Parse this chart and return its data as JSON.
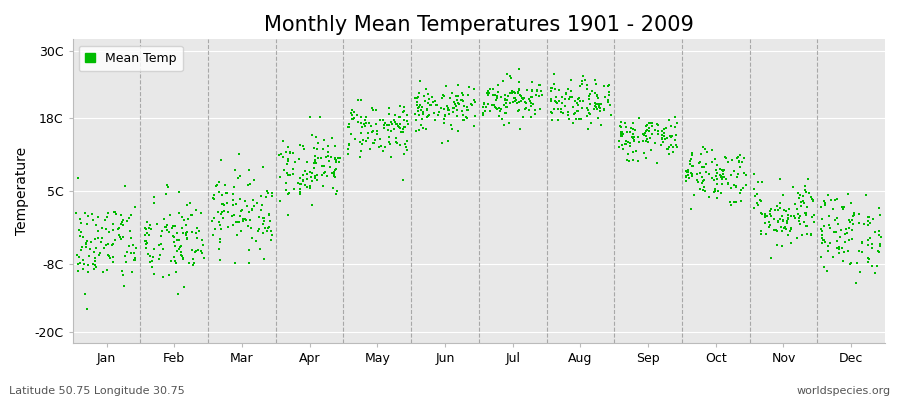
{
  "title": "Monthly Mean Temperatures 1901 - 2009",
  "ylabel": "Temperature",
  "yticks": [
    -20,
    -8,
    5,
    18,
    30
  ],
  "ytick_labels": [
    "-20C",
    "-8C",
    "5C",
    "18C",
    "30C"
  ],
  "ylim": [
    -22,
    32
  ],
  "months": [
    "Jan",
    "Feb",
    "Mar",
    "Apr",
    "May",
    "Jun",
    "Jul",
    "Aug",
    "Sep",
    "Oct",
    "Nov",
    "Dec"
  ],
  "mean_temps": [
    -4.5,
    -4.0,
    1.5,
    9.5,
    16.0,
    19.5,
    21.5,
    20.5,
    14.5,
    8.0,
    1.0,
    -2.5
  ],
  "std_temps": [
    4.0,
    4.2,
    3.5,
    3.0,
    2.5,
    2.0,
    2.0,
    2.0,
    2.0,
    2.5,
    3.0,
    3.5
  ],
  "trend_per_year": [
    0.02,
    0.02,
    0.02,
    0.02,
    0.02,
    0.01,
    0.01,
    0.01,
    0.01,
    0.02,
    0.02,
    0.02
  ],
  "n_years": 109,
  "marker_color": "#00BB00",
  "marker_size": 4,
  "plot_bg_color": "#e8e8e8",
  "fig_bg_color": "#ffffff",
  "legend_label": "Mean Temp",
  "subtitle_left": "Latitude 50.75 Longitude 30.75",
  "subtitle_right": "worldspecies.org",
  "dashed_line_color": "#999999",
  "title_fontsize": 15,
  "axis_label_fontsize": 10,
  "tick_fontsize": 9,
  "legend_fontsize": 9
}
